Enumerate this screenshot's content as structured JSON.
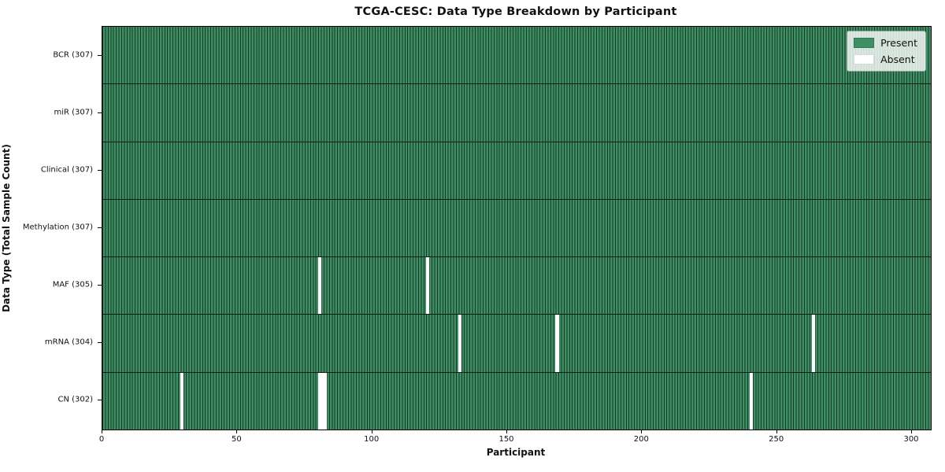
{
  "chart_data": {
    "type": "heatmap",
    "title": "TCGA-CESC: Data Type Breakdown by Participant",
    "xlabel": "Participant",
    "ylabel": "Data Type (Total Sample Count)",
    "xlim": [
      0,
      307
    ],
    "n_participants": 307,
    "x_ticks": [
      0,
      50,
      100,
      150,
      200,
      250,
      300
    ],
    "grid": false,
    "legend_position": "upper right",
    "legend": [
      {
        "label": "Present",
        "color": "#3b9163"
      },
      {
        "label": "Absent",
        "color": "#ffffff"
      }
    ],
    "colors": {
      "present": "#3b9163",
      "absent": "#ffffff",
      "cell_edge": "#1b3524",
      "row_divider": "#0c1a11"
    },
    "rows": [
      {
        "name": "BCR",
        "label": "BCR (307)",
        "total": 307,
        "absent_participants": []
      },
      {
        "name": "miR",
        "label": "miR (307)",
        "total": 307,
        "absent_participants": []
      },
      {
        "name": "Clinical",
        "label": "Clinical (307)",
        "total": 307,
        "absent_participants": []
      },
      {
        "name": "Methylation",
        "label": "Methylation (307)",
        "total": 307,
        "absent_participants": []
      },
      {
        "name": "MAF",
        "label": "MAF (305)",
        "total": 305,
        "absent_participants": [
          80,
          120
        ]
      },
      {
        "name": "mRNA",
        "label": "mRNA (304)",
        "total": 304,
        "absent_participants": [
          132,
          168,
          263
        ]
      },
      {
        "name": "CN",
        "label": "CN (302)",
        "total": 302,
        "absent_participants": [
          29,
          80,
          81,
          82,
          240
        ]
      }
    ]
  }
}
